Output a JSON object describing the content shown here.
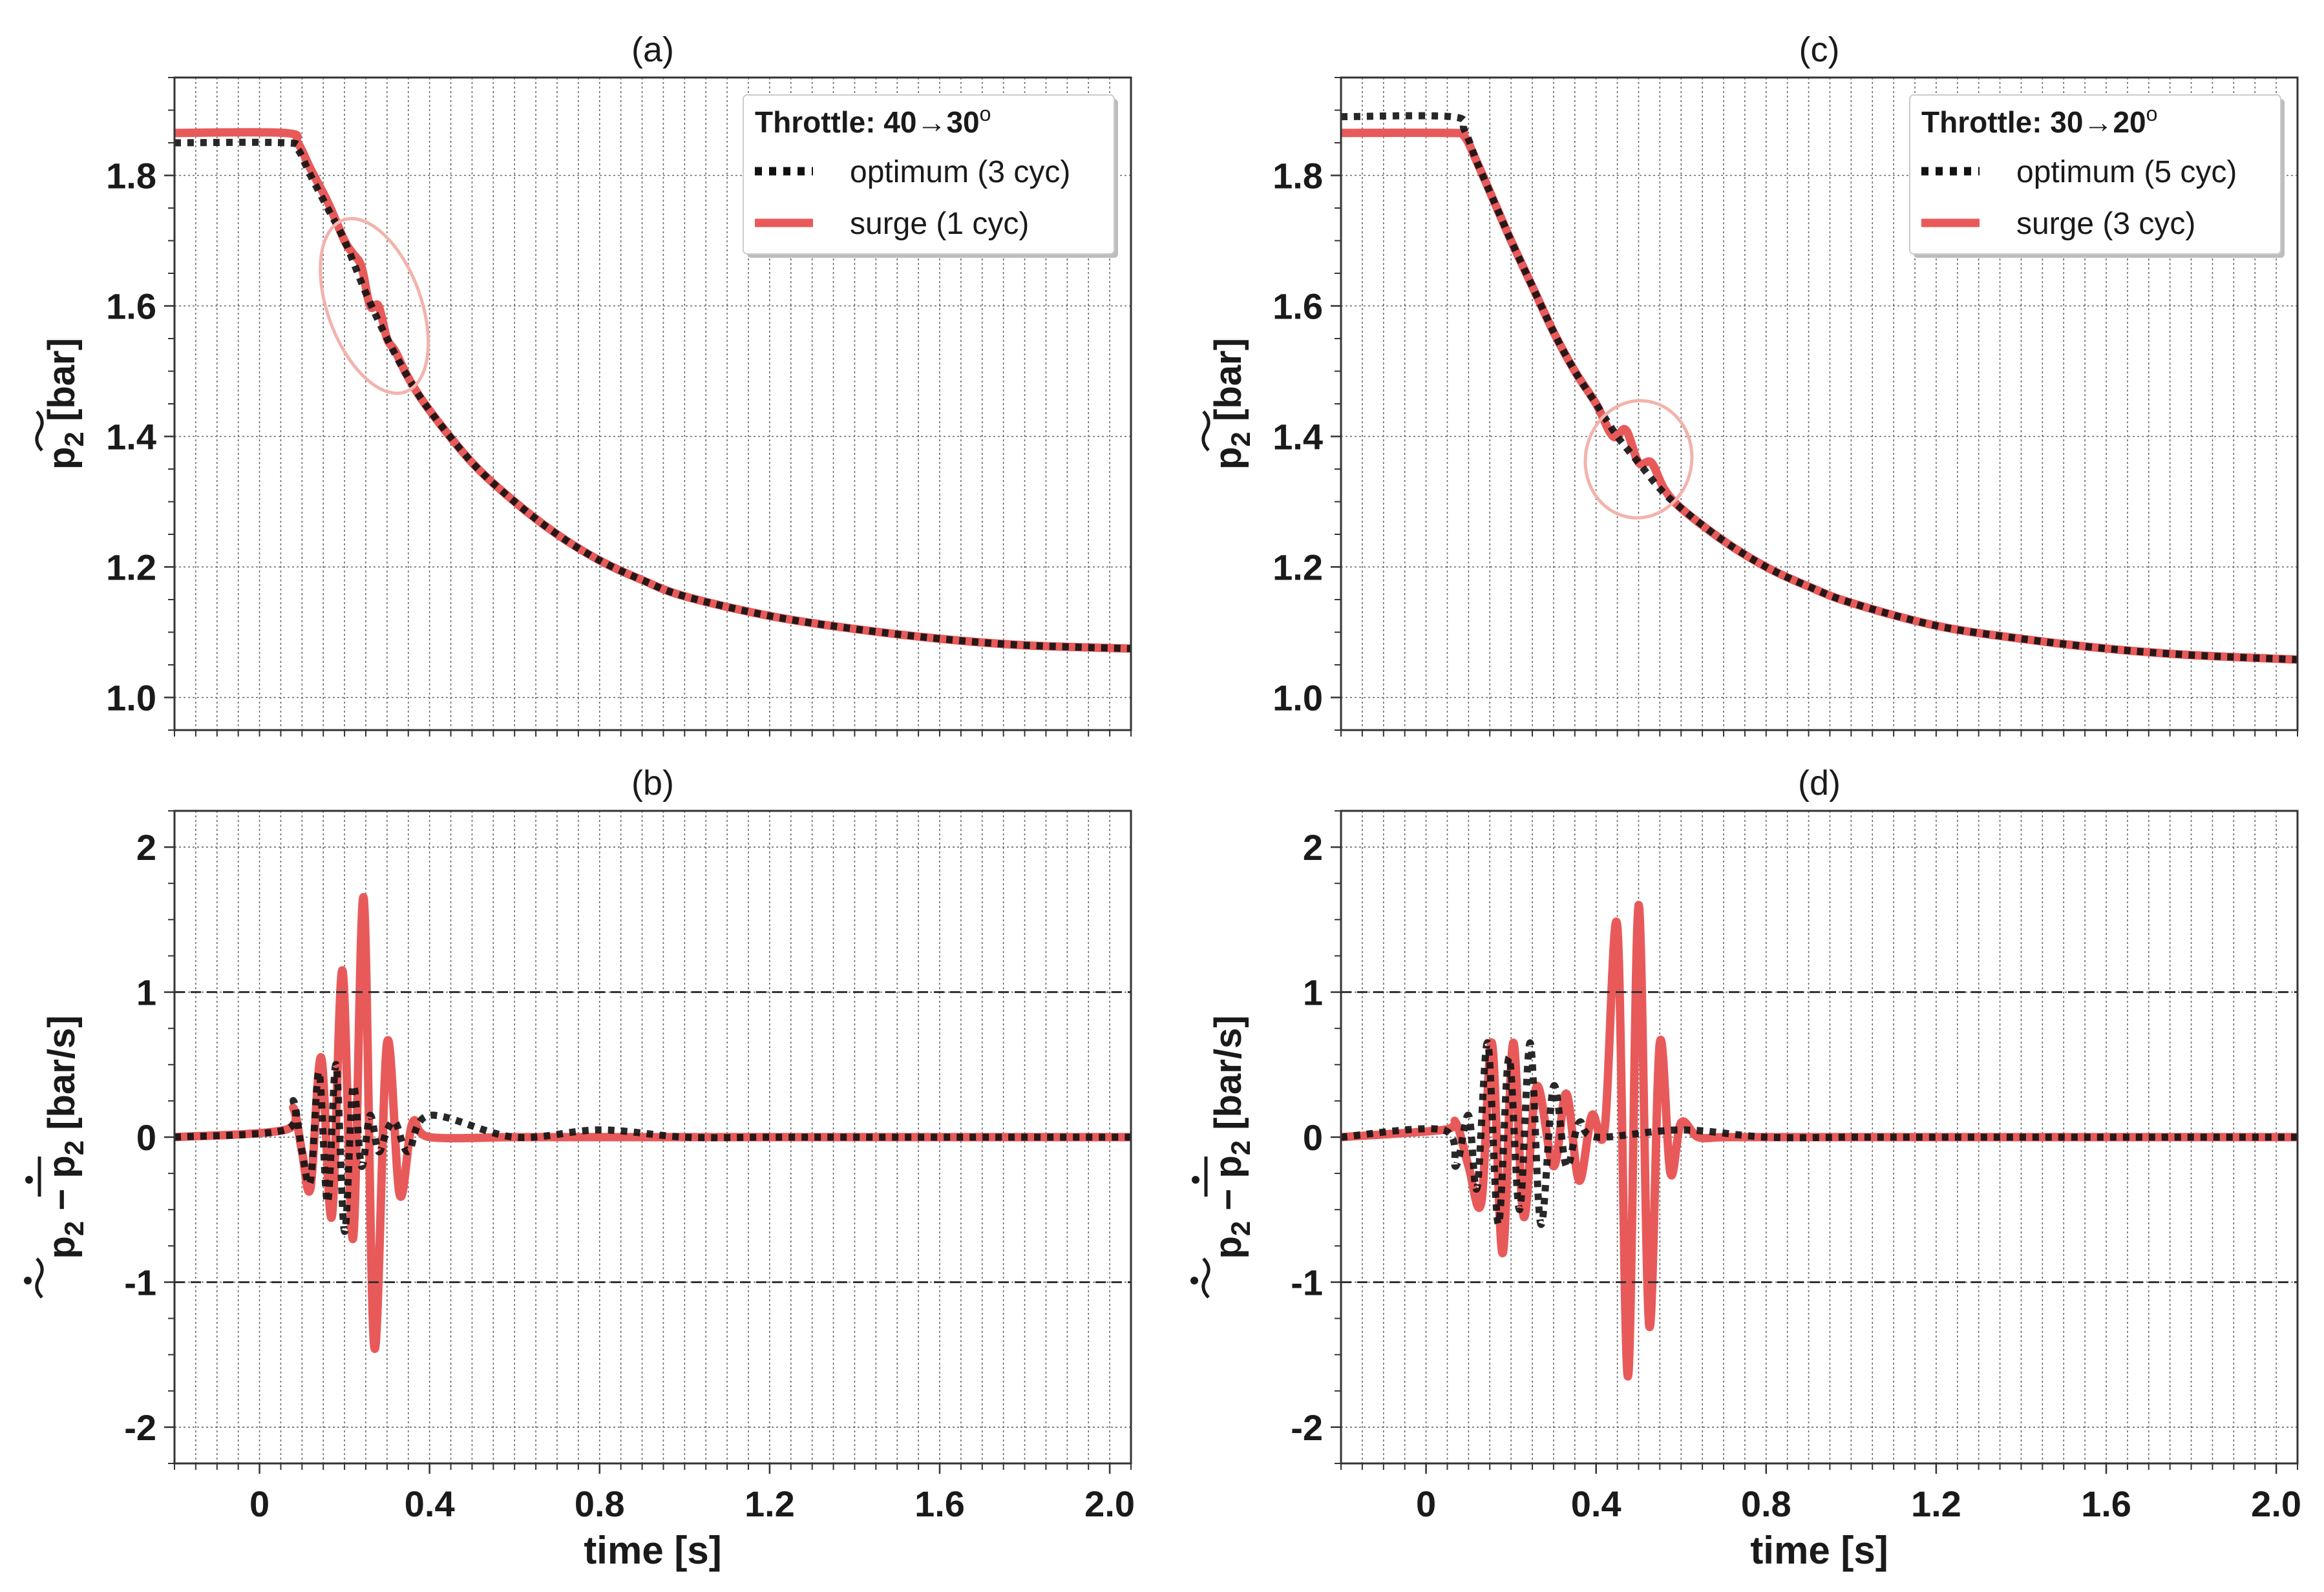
{
  "colors": {
    "optimum": "#111111",
    "surge": "#e85a5a",
    "circle": "#f2b3ac",
    "grid": "#666666",
    "refline": "#333333"
  },
  "chart_data": [
    {
      "id": "a",
      "type": "line",
      "title": "(a)",
      "xlabel": "",
      "ylabel": "p2 [bar]",
      "ylabel_main": "p",
      "ylabel_sub": "2",
      "ylabel_unit": " [bar]",
      "xlim": [
        -0.2,
        2.05
      ],
      "ylim": [
        0.95,
        1.95
      ],
      "xticks": [],
      "yticks": [
        1.0,
        1.2,
        1.4,
        1.6,
        1.8
      ],
      "ytick_labels": [
        "1.0",
        "1.2",
        "1.4",
        "1.6",
        "1.8"
      ],
      "legend": {
        "title_bold": "Throttle",
        "title_rest": ": 40→30",
        "title_deg": "o",
        "entries": [
          "optimum (3 cyc)",
          "surge (1 cyc)"
        ],
        "placement": "top-right"
      },
      "annotation": {
        "cx": 0.27,
        "cy": 1.6,
        "rx": 0.11,
        "ry": 0.14,
        "tilt_deg": -20
      },
      "series": [
        {
          "name": "optimum (3 cyc)",
          "style": "dotted",
          "x": [
            -0.2,
            0.06,
            0.09,
            0.12,
            0.16,
            0.2,
            0.25,
            0.3,
            0.35,
            0.4,
            0.5,
            0.6,
            0.7,
            0.8,
            0.9,
            1.0,
            1.2,
            1.4,
            1.6,
            1.8,
            2.05
          ],
          "y": [
            1.85,
            1.85,
            1.84,
            1.8,
            1.75,
            1.7,
            1.62,
            1.55,
            1.49,
            1.44,
            1.36,
            1.3,
            1.25,
            1.21,
            1.18,
            1.155,
            1.125,
            1.105,
            1.09,
            1.08,
            1.075
          ]
        },
        {
          "name": "surge (1 cyc)",
          "style": "solid",
          "x": [
            -0.2,
            0.06,
            0.09,
            0.12,
            0.16,
            0.2,
            0.22,
            0.24,
            0.26,
            0.28,
            0.3,
            0.32,
            0.35,
            0.4,
            0.5,
            0.6,
            0.7,
            0.8,
            0.9,
            1.0,
            1.2,
            1.4,
            1.6,
            1.8,
            2.05
          ],
          "y": [
            1.865,
            1.865,
            1.85,
            1.81,
            1.76,
            1.7,
            1.68,
            1.66,
            1.6,
            1.6,
            1.55,
            1.53,
            1.49,
            1.44,
            1.36,
            1.3,
            1.25,
            1.21,
            1.18,
            1.155,
            1.125,
            1.105,
            1.09,
            1.08,
            1.075
          ]
        }
      ]
    },
    {
      "id": "b",
      "type": "line",
      "title": "(b)",
      "xlabel": "time [s]",
      "ylabel": "p2 - p2 [bar/s]",
      "ylabel_main": "p",
      "ylabel_sub": "2",
      "ylabel_unit": " [bar/s]",
      "xlim": [
        -0.2,
        2.05
      ],
      "ylim": [
        -2.25,
        2.25
      ],
      "xticks": [
        0,
        0.4,
        0.8,
        1.2,
        1.6,
        2.0
      ],
      "xtick_labels": [
        "0",
        "0.4",
        "0.8",
        "1.2",
        "1.6",
        "2.0"
      ],
      "yticks": [
        -2,
        -1,
        0,
        1,
        2
      ],
      "ytick_labels": [
        "-2",
        "-1",
        "0",
        "1",
        "2"
      ],
      "ref_lines": [
        1,
        -1
      ],
      "series": [
        {
          "name": "optimum (3 cyc)",
          "style": "dotted",
          "x": [
            -0.2,
            0.06,
            0.08,
            0.1,
            0.12,
            0.14,
            0.16,
            0.18,
            0.2,
            0.22,
            0.24,
            0.26,
            0.28,
            0.3,
            0.32,
            0.35,
            0.4,
            0.6,
            0.8,
            1.0,
            1.2,
            1.4,
            1.6,
            1.8,
            2.05
          ],
          "y": [
            0,
            0.05,
            0.25,
            -0.1,
            -0.3,
            0.45,
            -0.45,
            0.5,
            -0.65,
            0.35,
            -0.2,
            0.15,
            -0.1,
            0.05,
            0.1,
            -0.1,
            0.15,
            0,
            0.05,
            0,
            0,
            0,
            0,
            0,
            0
          ]
        },
        {
          "name": "surge (1 cyc)",
          "style": "solid",
          "x": [
            -0.2,
            0.06,
            0.08,
            0.1,
            0.12,
            0.145,
            0.17,
            0.195,
            0.22,
            0.245,
            0.27,
            0.3,
            0.33,
            0.36,
            0.4,
            0.6,
            0.8,
            1.0,
            1.2,
            1.4,
            1.6,
            1.8,
            2.05
          ],
          "y": [
            0,
            0.05,
            0.2,
            -0.1,
            -0.35,
            0.55,
            -0.55,
            1.15,
            -0.7,
            1.65,
            -1.45,
            0.65,
            -0.4,
            0.1,
            0,
            0,
            0,
            0,
            0,
            0,
            0,
            0,
            0
          ]
        }
      ]
    },
    {
      "id": "c",
      "type": "line",
      "title": "(c)",
      "xlabel": "",
      "ylabel": "p2 [bar]",
      "ylabel_main": "p",
      "ylabel_sub": "2",
      "ylabel_unit": " [bar]",
      "xlim": [
        -0.2,
        2.05
      ],
      "ylim": [
        0.95,
        1.95
      ],
      "xticks": [],
      "yticks": [
        1.0,
        1.2,
        1.4,
        1.6,
        1.8
      ],
      "ytick_labels": [
        "1.0",
        "1.2",
        "1.4",
        "1.6",
        "1.8"
      ],
      "legend": {
        "title_bold": "Throttle",
        "title_rest": ": 30→20",
        "title_deg": "o",
        "entries": [
          "optimum (5 cyc)",
          "surge (3 cyc)"
        ],
        "placement": "top-right"
      },
      "annotation": {
        "cx": 0.5,
        "cy": 1.365,
        "rx": 0.125,
        "ry": 0.09,
        "tilt_deg": 10
      },
      "series": [
        {
          "name": "optimum (5 cyc)",
          "style": "dotted",
          "x": [
            -0.2,
            0.06,
            0.09,
            0.12,
            0.16,
            0.2,
            0.25,
            0.3,
            0.35,
            0.4,
            0.45,
            0.5,
            0.55,
            0.6,
            0.7,
            0.8,
            0.9,
            1.0,
            1.2,
            1.4,
            1.6,
            1.8,
            2.05
          ],
          "y": [
            1.89,
            1.89,
            1.87,
            1.82,
            1.76,
            1.7,
            1.63,
            1.56,
            1.5,
            1.45,
            1.4,
            1.36,
            1.32,
            1.29,
            1.24,
            1.2,
            1.17,
            1.145,
            1.11,
            1.09,
            1.075,
            1.065,
            1.058
          ]
        },
        {
          "name": "surge (3 cyc)",
          "style": "solid",
          "x": [
            -0.2,
            0.06,
            0.09,
            0.12,
            0.16,
            0.2,
            0.25,
            0.3,
            0.35,
            0.4,
            0.44,
            0.47,
            0.5,
            0.53,
            0.56,
            0.6,
            0.7,
            0.8,
            0.9,
            1.0,
            1.2,
            1.4,
            1.6,
            1.8,
            2.05
          ],
          "y": [
            1.865,
            1.865,
            1.86,
            1.82,
            1.76,
            1.7,
            1.63,
            1.56,
            1.5,
            1.45,
            1.4,
            1.41,
            1.36,
            1.36,
            1.32,
            1.29,
            1.24,
            1.2,
            1.17,
            1.145,
            1.11,
            1.09,
            1.075,
            1.065,
            1.058
          ]
        }
      ]
    },
    {
      "id": "d",
      "type": "line",
      "title": "(d)",
      "xlabel": "time [s]",
      "ylabel": "p2 - p2 [bar/s]",
      "ylabel_main": "p",
      "ylabel_sub": "2",
      "ylabel_unit": " [bar/s]",
      "xlim": [
        -0.2,
        2.05
      ],
      "ylim": [
        -2.25,
        2.25
      ],
      "xticks": [
        0,
        0.4,
        0.8,
        1.2,
        1.6,
        2.0
      ],
      "xtick_labels": [
        "0",
        "0.4",
        "0.8",
        "1.2",
        "1.6",
        "2.0"
      ],
      "yticks": [
        -2,
        -1,
        0,
        1,
        2
      ],
      "ytick_labels": [
        "-2",
        "-1",
        "0",
        "1",
        "2"
      ],
      "ref_lines": [
        1,
        -1
      ],
      "series": [
        {
          "name": "optimum (5 cyc)",
          "style": "dotted",
          "x": [
            -0.2,
            0.04,
            0.07,
            0.1,
            0.12,
            0.145,
            0.17,
            0.195,
            0.22,
            0.245,
            0.27,
            0.3,
            0.33,
            0.36,
            0.4,
            0.6,
            0.8,
            1.0,
            1.2,
            1.4,
            1.6,
            1.8,
            2.05
          ],
          "y": [
            0,
            0.05,
            -0.2,
            0.15,
            -0.35,
            0.65,
            -0.6,
            0.55,
            -0.5,
            0.65,
            -0.6,
            0.35,
            -0.2,
            0.1,
            0,
            0.05,
            0,
            0,
            0,
            0,
            0,
            0,
            0
          ]
        },
        {
          "name": "surge (3 cyc)",
          "style": "solid",
          "x": [
            -0.2,
            0.04,
            0.07,
            0.1,
            0.13,
            0.155,
            0.18,
            0.205,
            0.23,
            0.26,
            0.3,
            0.33,
            0.36,
            0.39,
            0.42,
            0.45,
            0.475,
            0.5,
            0.525,
            0.55,
            0.575,
            0.6,
            0.64,
            0.7,
            0.8,
            1.0,
            1.2,
            1.4,
            1.6,
            1.8,
            2.05
          ],
          "y": [
            0,
            0.05,
            0.1,
            -0.2,
            -0.45,
            0.65,
            -0.8,
            0.65,
            -0.55,
            0.35,
            -0.2,
            0.3,
            -0.3,
            0.15,
            0.05,
            1.45,
            -1.65,
            1.6,
            -1.3,
            0.65,
            -0.25,
            0.1,
            0,
            0,
            0,
            0,
            0,
            0,
            0,
            0,
            0
          ]
        }
      ]
    }
  ]
}
